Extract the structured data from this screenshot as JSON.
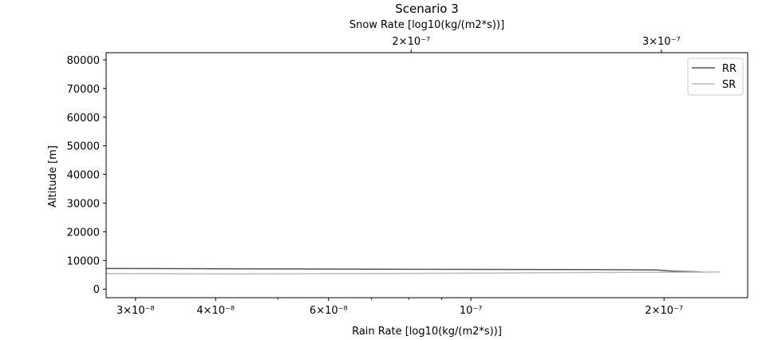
{
  "chart_data": {
    "type": "line",
    "title": "Scenario 3",
    "xlabel": "Rain Rate [log10(kg/(m2*s))]",
    "x2label": "Snow Rate [log10(kg/(m2*s))]",
    "ylabel": "Altitude [m]",
    "x_scale": "log",
    "x2_scale": "log",
    "xlim": [
      2.7e-08,
      2.7e-07
    ],
    "x2lim": [
      1.22e-07,
      3.45e-07
    ],
    "ylim": [
      -3000,
      82500
    ],
    "grid": false,
    "legend_position": "top-right",
    "x_ticks": [
      {
        "value": 3e-08,
        "label": "3×10⁻⁸"
      },
      {
        "value": 4e-08,
        "label": "4×10⁻⁸"
      },
      {
        "value": 6e-08,
        "label": "6×10⁻⁸"
      },
      {
        "value": 1e-07,
        "label": "10⁻⁷"
      },
      {
        "value": 2e-07,
        "label": "2×10⁻⁷"
      }
    ],
    "x_minor_ticks": [
      5e-08,
      7e-08,
      8e-08,
      9e-08
    ],
    "x2_ticks": [
      {
        "value": 2e-07,
        "label": "2×10⁻⁷"
      },
      {
        "value": 3e-07,
        "label": "3×10⁻⁷"
      }
    ],
    "y_ticks": [
      {
        "value": 0,
        "label": "0"
      },
      {
        "value": 10000,
        "label": "10000"
      },
      {
        "value": 20000,
        "label": "20000"
      },
      {
        "value": 30000,
        "label": "30000"
      },
      {
        "value": 40000,
        "label": "40000"
      },
      {
        "value": 50000,
        "label": "50000"
      },
      {
        "value": 60000,
        "label": "60000"
      },
      {
        "value": 70000,
        "label": "70000"
      },
      {
        "value": 80000,
        "label": "80000"
      }
    ],
    "series": [
      {
        "name": "RR",
        "axis": "bottom",
        "color": "#555555",
        "points": [
          [
            2.7e-08,
            7200
          ],
          [
            4e-08,
            7100
          ],
          [
            6e-08,
            7000
          ],
          [
            1e-07,
            6900
          ],
          [
            1.5e-07,
            6800
          ],
          [
            1.95e-07,
            6700
          ],
          [
            2.05e-07,
            6300
          ],
          [
            2.3e-07,
            6000
          ]
        ]
      },
      {
        "name": "SR",
        "axis": "top",
        "color": "#bbbbbb",
        "points": [
          [
            1.22e-07,
            5400
          ],
          [
            1.5e-07,
            5300
          ],
          [
            1.9e-07,
            5400
          ],
          [
            2.3e-07,
            5600
          ],
          [
            2.7e-07,
            5800
          ],
          [
            3.2e-07,
            5900
          ],
          [
            3.3e-07,
            6000
          ]
        ]
      }
    ]
  }
}
